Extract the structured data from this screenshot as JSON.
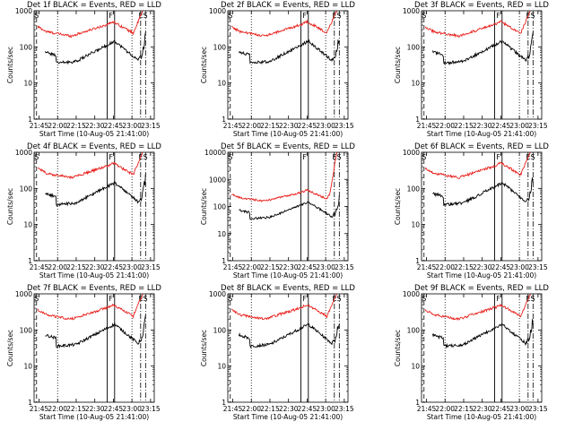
{
  "figure": {
    "x_axis_label": "Start Time (10-Aug-05 21:41:00)",
    "y_axis_label": "Counts/sec",
    "colors": {
      "events": "#000000",
      "lld": "#e8201c",
      "axes": "#000000"
    }
  },
  "chart_data": [
    {
      "type": "line",
      "title": "Det 1f BLACK = Events, RED = LLD",
      "markers": [
        "S",
        "F",
        "ES"
      ],
      "lld_saturates": false
    },
    {
      "type": "line",
      "title": "Det 2f BLACK = Events, RED = LLD",
      "markers": [
        "S",
        "F",
        "ES"
      ],
      "lld_saturates": false
    },
    {
      "type": "line",
      "title": "Det 3f BLACK = Events, RED = LLD",
      "markers": [
        "S",
        "F",
        "ES"
      ],
      "lld_saturates": false
    },
    {
      "type": "line",
      "title": "Det 4f BLACK = Events, RED = LLD",
      "markers": [
        "S",
        "F",
        "ES"
      ],
      "lld_saturates": false
    },
    {
      "type": "line",
      "title": "Det 5f BLACK = Events, RED = LLD",
      "markers": [
        "S",
        "F",
        "ES"
      ],
      "lld_saturates": true
    },
    {
      "type": "line",
      "title": "Det 6f BLACK = Events, RED = LLD",
      "markers": [
        "S",
        "F",
        "ES"
      ],
      "lld_saturates": false
    },
    {
      "type": "line",
      "title": "Det 7f BLACK = Events, RED = LLD",
      "markers": [
        "S",
        "F",
        "ES"
      ],
      "lld_saturates": false
    },
    {
      "type": "line",
      "title": "Det 8f BLACK = Events, RED = LLD",
      "markers": [
        "S",
        "F",
        "ES"
      ],
      "lld_saturates": false
    },
    {
      "type": "line",
      "title": "Det 9f BLACK = Events, RED = LLD",
      "markers": [
        "S",
        "F",
        "ES"
      ],
      "lld_saturates": false
    }
  ],
  "shared_axes": {
    "x_min_minutes": 0,
    "x_max_minutes": 97,
    "x_ticks": [
      {
        "label": "21:45",
        "minute": 4
      },
      {
        "label": "22:00",
        "minute": 19
      },
      {
        "label": "22:15",
        "minute": 34
      },
      {
        "label": "22:30",
        "minute": 49
      },
      {
        "label": "22:45",
        "minute": 64
      },
      {
        "label": "23:00",
        "minute": 79
      },
      {
        "label": "23:15",
        "minute": 94
      }
    ],
    "y_scale": "log",
    "y_range": [
      1,
      1000
    ],
    "y_ticks": [
      "1",
      "10",
      "100",
      "1000"
    ],
    "y_ticks_panel5": [
      "1",
      "10",
      "100",
      "1000",
      "10000"
    ],
    "y_range_panel5": [
      1,
      10000
    ]
  },
  "reference_lines": {
    "S_minute": 2,
    "dotted_minute": 19,
    "F_start_minute": 59,
    "F_end_minute": 65,
    "dotted2_minute": 79,
    "ES_start_minute": 86,
    "ES_end_minute": 90
  }
}
